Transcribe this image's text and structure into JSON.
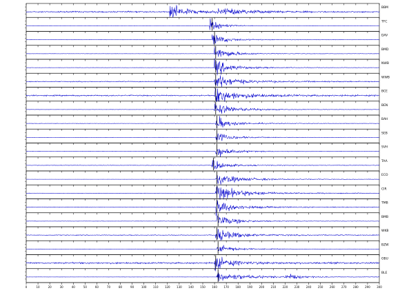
{
  "chart_data": {
    "type": "line",
    "title": "",
    "xlabel": "",
    "ylabel": "",
    "xlim": [
      0,
      300
    ],
    "x_ticks": [
      0,
      10,
      20,
      30,
      40,
      50,
      60,
      70,
      80,
      90,
      100,
      110,
      120,
      130,
      140,
      150,
      160,
      170,
      180,
      190,
      200,
      210,
      220,
      230,
      240,
      250,
      260,
      270,
      280,
      290,
      300
    ],
    "grid": false,
    "legend": "none",
    "trace_color": "#0000cc",
    "pick_line_color": "#000000",
    "series": [
      {
        "name": "BBM",
        "onset": 122,
        "pick": null,
        "amplitude": 0.9,
        "noise": 0.35,
        "decay": 10,
        "secondary": [
          {
            "t": 172,
            "a": 0.35,
            "d": 20
          }
        ]
      },
      {
        "name": "TFC",
        "onset": 156,
        "pick": 158,
        "amplitude": 0.85,
        "noise": 0.05,
        "decay": 6,
        "secondary": []
      },
      {
        "name": "DAV",
        "onset": 158,
        "pick": 160,
        "amplitude": 0.8,
        "noise": 0.07,
        "decay": 8,
        "secondary": []
      },
      {
        "name": "BMD",
        "onset": 160,
        "pick": 161,
        "amplitude": 0.95,
        "noise": 0.07,
        "decay": 9,
        "secondary": []
      },
      {
        "name": "NWB",
        "onset": 160,
        "pick": 161,
        "amplitude": 1.0,
        "noise": 0.08,
        "decay": 10,
        "secondary": []
      },
      {
        "name": "WWB",
        "onset": 160,
        "pick": 161,
        "amplitude": 0.9,
        "noise": 0.25,
        "decay": 12,
        "secondary": []
      },
      {
        "name": "BCE",
        "onset": 160,
        "pick": 161,
        "amplitude": 0.95,
        "noise": 0.35,
        "decay": 14,
        "secondary": []
      },
      {
        "name": "BEN",
        "onset": 160,
        "pick": 161,
        "amplitude": 0.8,
        "noise": 0.07,
        "decay": 12,
        "secondary": []
      },
      {
        "name": "BAH",
        "onset": 161,
        "pick": 162,
        "amplitude": 0.85,
        "noise": 0.08,
        "decay": 9,
        "secondary": []
      },
      {
        "name": "SEB",
        "onset": 161,
        "pick": 162,
        "amplitude": 0.8,
        "noise": 0.06,
        "decay": 8,
        "secondary": []
      },
      {
        "name": "SVH",
        "onset": 161,
        "pick": 162,
        "amplitude": 0.75,
        "noise": 0.08,
        "decay": 9,
        "secondary": []
      },
      {
        "name": "TAA",
        "onset": 158,
        "pick": 159,
        "amplitude": 0.7,
        "noise": 0.12,
        "decay": 8,
        "secondary": []
      },
      {
        "name": "ECO",
        "onset": 161,
        "pick": 162,
        "amplitude": 0.6,
        "noise": 0.03,
        "decay": 18,
        "secondary": []
      },
      {
        "name": "CIR",
        "onset": 161,
        "pick": 162,
        "amplitude": 0.95,
        "noise": 0.1,
        "decay": 16,
        "secondary": []
      },
      {
        "name": "TMB",
        "onset": 161,
        "pick": 162,
        "amplitude": 0.85,
        "noise": 0.15,
        "decay": 12,
        "secondary": []
      },
      {
        "name": "BMB",
        "onset": 162,
        "pick": 163,
        "amplitude": 0.8,
        "noise": 0.08,
        "decay": 10,
        "secondary": []
      },
      {
        "name": "WKB",
        "onset": 161,
        "pick": 162,
        "amplitude": 0.85,
        "noise": 0.2,
        "decay": 12,
        "secondary": []
      },
      {
        "name": "BZW",
        "onset": 162,
        "pick": 163,
        "amplitude": 0.6,
        "noise": 0.06,
        "decay": 10,
        "secondary": []
      },
      {
        "name": "OBU",
        "onset": 160,
        "pick": 161,
        "amplitude": 0.8,
        "noise": 0.45,
        "decay": 10,
        "secondary": []
      },
      {
        "name": "BLE",
        "onset": 162,
        "pick": 163,
        "amplitude": 0.6,
        "noise": 0.05,
        "decay": 20,
        "secondary": [
          {
            "t": 224,
            "a": 0.35,
            "d": 8
          }
        ]
      }
    ]
  }
}
